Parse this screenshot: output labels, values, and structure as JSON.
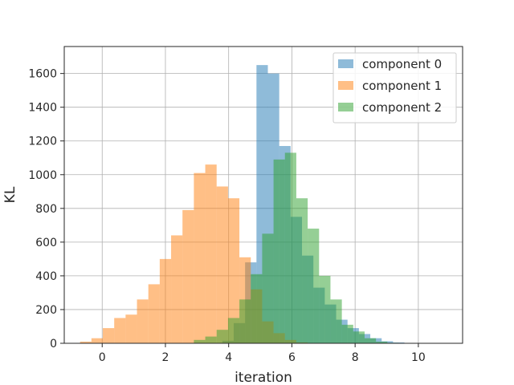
{
  "chart_data": {
    "type": "bar",
    "subtype": "overlapping-histogram",
    "xlabel": "iteration",
    "ylabel": "KL",
    "xlim": [
      -1.2,
      11.4
    ],
    "ylim": [
      0,
      1760
    ],
    "xticks": [
      0,
      2,
      4,
      6,
      8,
      10
    ],
    "yticks": [
      0,
      200,
      400,
      600,
      800,
      1000,
      1200,
      1400,
      1600
    ],
    "grid": true,
    "legend_position": "top-right",
    "opacity": 0.5,
    "series": [
      {
        "name": "component 0",
        "color": "#1f77b4",
        "bin_width": 0.36,
        "bins": [
          {
            "x": 3.8,
            "y": 15
          },
          {
            "x": 4.16,
            "y": 120
          },
          {
            "x": 4.52,
            "y": 480
          },
          {
            "x": 4.88,
            "y": 1650
          },
          {
            "x": 5.24,
            "y": 1600
          },
          {
            "x": 5.6,
            "y": 1170
          },
          {
            "x": 5.96,
            "y": 750
          },
          {
            "x": 6.32,
            "y": 520
          },
          {
            "x": 6.68,
            "y": 330
          },
          {
            "x": 7.04,
            "y": 230
          },
          {
            "x": 7.4,
            "y": 140
          },
          {
            "x": 7.76,
            "y": 90
          },
          {
            "x": 8.12,
            "y": 55
          },
          {
            "x": 8.48,
            "y": 30
          },
          {
            "x": 8.84,
            "y": 12
          },
          {
            "x": 9.2,
            "y": 5
          },
          {
            "x": 9.56,
            "y": 2
          },
          {
            "x": 9.92,
            "y": 1
          }
        ]
      },
      {
        "name": "component 1",
        "color": "#ff7f0e",
        "bin_width": 0.36,
        "bins": [
          {
            "x": -0.7,
            "y": 10
          },
          {
            "x": -0.34,
            "y": 30
          },
          {
            "x": 0.02,
            "y": 90
          },
          {
            "x": 0.38,
            "y": 150
          },
          {
            "x": 0.74,
            "y": 170
          },
          {
            "x": 1.1,
            "y": 260
          },
          {
            "x": 1.46,
            "y": 350
          },
          {
            "x": 1.82,
            "y": 500
          },
          {
            "x": 2.18,
            "y": 640
          },
          {
            "x": 2.54,
            "y": 790
          },
          {
            "x": 2.9,
            "y": 1010
          },
          {
            "x": 3.26,
            "y": 1060
          },
          {
            "x": 3.62,
            "y": 930
          },
          {
            "x": 3.98,
            "y": 860
          },
          {
            "x": 4.34,
            "y": 510
          },
          {
            "x": 4.7,
            "y": 320
          },
          {
            "x": 5.06,
            "y": 130
          },
          {
            "x": 5.42,
            "y": 60
          },
          {
            "x": 5.78,
            "y": 20
          },
          {
            "x": 6.14,
            "y": 5
          }
        ]
      },
      {
        "name": "component 2",
        "color": "#2ca02c",
        "bin_width": 0.36,
        "bins": [
          {
            "x": 2.9,
            "y": 20
          },
          {
            "x": 3.26,
            "y": 40
          },
          {
            "x": 3.62,
            "y": 80
          },
          {
            "x": 3.98,
            "y": 150
          },
          {
            "x": 4.34,
            "y": 260
          },
          {
            "x": 4.7,
            "y": 410
          },
          {
            "x": 5.06,
            "y": 650
          },
          {
            "x": 5.42,
            "y": 1090
          },
          {
            "x": 5.78,
            "y": 1130
          },
          {
            "x": 6.14,
            "y": 860
          },
          {
            "x": 6.5,
            "y": 680
          },
          {
            "x": 6.86,
            "y": 400
          },
          {
            "x": 7.22,
            "y": 260
          },
          {
            "x": 7.58,
            "y": 110
          },
          {
            "x": 7.94,
            "y": 70
          },
          {
            "x": 8.3,
            "y": 30
          },
          {
            "x": 8.66,
            "y": 10
          },
          {
            "x": 9.02,
            "y": 3
          }
        ]
      }
    ]
  }
}
